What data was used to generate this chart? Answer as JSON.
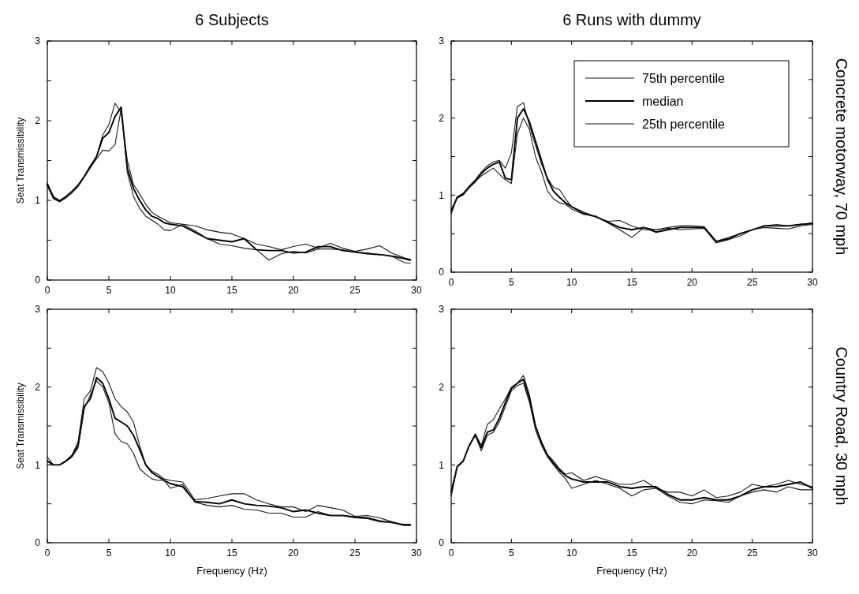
{
  "chart_data": [
    {
      "type": "line",
      "title": "6 Subjects",
      "ylabel": "Seat Transmissibility",
      "xlim": [
        0,
        30
      ],
      "ylim": [
        0,
        3
      ],
      "xticks": [
        0,
        5,
        10,
        15,
        20,
        25,
        30
      ],
      "yticks": [
        0,
        {
          "value": 0.5,
          "label": null
        },
        1,
        {
          "value": 1.5,
          "label": null
        },
        2,
        {
          "value": 2.5,
          "label": null
        },
        3
      ],
      "grid": false,
      "legend": false,
      "marker": "none",
      "line_style": "solid",
      "x": [
        0,
        0.5,
        1,
        1.5,
        2,
        2.5,
        3,
        3.5,
        4,
        4.5,
        5,
        5.5,
        6,
        6.5,
        7,
        7.5,
        8,
        8.5,
        9,
        9.5,
        10,
        11,
        12,
        13,
        14,
        15,
        16,
        17,
        18,
        19,
        20,
        21,
        22,
        23,
        24,
        25,
        26,
        27,
        28,
        29,
        29.5
      ],
      "series": [
        {
          "color": "#1a1a1a",
          "values": [
            1.22,
            1.05,
            1.0,
            1.05,
            1.12,
            1.2,
            1.3,
            1.42,
            1.55,
            1.82,
            1.95,
            2.22,
            2.1,
            1.5,
            1.2,
            1.08,
            0.95,
            0.85,
            0.8,
            0.76,
            0.72,
            0.7,
            0.68,
            0.63,
            0.6,
            0.58,
            0.52,
            0.45,
            0.42,
            0.38,
            0.42,
            0.45,
            0.4,
            0.46,
            0.4,
            0.36,
            0.39,
            0.43,
            0.34,
            0.28,
            0.26
          ]
        },
        {
          "color": "#000000",
          "values": [
            1.2,
            1.03,
            0.99,
            1.04,
            1.1,
            1.18,
            1.3,
            1.43,
            1.55,
            1.78,
            1.85,
            2.05,
            2.17,
            1.4,
            1.15,
            1.0,
            0.88,
            0.8,
            0.77,
            0.72,
            0.7,
            0.68,
            0.6,
            0.52,
            0.5,
            0.48,
            0.52,
            0.38,
            0.37,
            0.37,
            0.34,
            0.35,
            0.42,
            0.42,
            0.37,
            0.35,
            0.33,
            0.32,
            0.3,
            0.27,
            0.25
          ]
        },
        {
          "color": "#1a1a1a",
          "values": [
            1.18,
            1.02,
            0.98,
            1.03,
            1.1,
            1.18,
            1.29,
            1.41,
            1.52,
            1.63,
            1.62,
            1.7,
            2.15,
            1.35,
            1.05,
            0.9,
            0.8,
            0.75,
            0.7,
            0.63,
            0.62,
            0.7,
            0.62,
            0.52,
            0.45,
            0.43,
            0.4,
            0.38,
            0.25,
            0.33,
            0.36,
            0.34,
            0.39,
            0.39,
            0.38,
            0.35,
            0.34,
            0.32,
            0.3,
            0.22,
            0.21
          ]
        }
      ]
    },
    {
      "type": "line",
      "title": "6 Runs with dummy",
      "annotations": [
        "Concrete motorway, 70 mph"
      ],
      "xlim": [
        0,
        30
      ],
      "ylim": [
        0,
        3
      ],
      "xticks": [
        0,
        5,
        10,
        15,
        20,
        25,
        30
      ],
      "yticks": [
        0,
        {
          "value": 0.5,
          "label": null
        },
        1,
        {
          "value": 1.5,
          "label": null
        },
        2,
        {
          "value": 2.5,
          "label": null
        },
        3
      ],
      "grid": false,
      "legend": "top right",
      "marker": "none",
      "line_style": "solid",
      "x": [
        0,
        0.5,
        1,
        1.5,
        2,
        2.5,
        3,
        3.5,
        4,
        4.5,
        5,
        5.5,
        6,
        6.5,
        7,
        7.5,
        8,
        8.5,
        9,
        9.5,
        10,
        11,
        12,
        13,
        14,
        15,
        16,
        17,
        18,
        19,
        20,
        21,
        22,
        23,
        24,
        25,
        26,
        27,
        28,
        29,
        30
      ],
      "series": [
        {
          "name": "75th percentile",
          "color": "#1a1a1a",
          "values": [
            0.75,
            0.98,
            1.02,
            1.12,
            1.2,
            1.3,
            1.38,
            1.43,
            1.45,
            1.35,
            1.55,
            2.15,
            2.2,
            1.9,
            1.65,
            1.4,
            1.22,
            1.1,
            1.07,
            0.95,
            0.85,
            0.78,
            0.72,
            0.66,
            0.67,
            0.6,
            0.55,
            0.55,
            0.58,
            0.6,
            0.6,
            0.59,
            0.4,
            0.45,
            0.5,
            0.55,
            0.6,
            0.62,
            0.6,
            0.62,
            0.64
          ]
        },
        {
          "name": "median",
          "color": "#000000",
          "values": [
            0.8,
            0.97,
            1.02,
            1.1,
            1.18,
            1.28,
            1.35,
            1.4,
            1.43,
            1.22,
            1.2,
            2.0,
            2.12,
            1.95,
            1.7,
            1.45,
            1.2,
            1.05,
            0.97,
            0.9,
            0.85,
            0.76,
            0.72,
            0.65,
            0.58,
            0.55,
            0.58,
            0.52,
            0.55,
            0.58,
            0.58,
            0.58,
            0.4,
            0.43,
            0.5,
            0.55,
            0.6,
            0.6,
            0.6,
            0.62,
            0.63
          ]
        },
        {
          "name": "25th percentile",
          "color": "#1a1a1a",
          "values": [
            0.78,
            0.96,
            1.0,
            1.1,
            1.17,
            1.25,
            1.3,
            1.35,
            1.27,
            1.2,
            1.15,
            1.8,
            2.0,
            1.85,
            1.5,
            1.3,
            1.05,
            0.95,
            0.9,
            0.88,
            0.82,
            0.75,
            0.73,
            0.64,
            0.55,
            0.45,
            0.58,
            0.55,
            0.57,
            0.55,
            0.56,
            0.57,
            0.38,
            0.42,
            0.47,
            0.55,
            0.58,
            0.57,
            0.56,
            0.6,
            0.62
          ]
        }
      ]
    },
    {
      "type": "line",
      "ylabel": "Seat Transmissibility",
      "xlabel": "Frequency (Hz)",
      "xlim": [
        0,
        30
      ],
      "ylim": [
        0,
        3
      ],
      "xticks": [
        0,
        5,
        10,
        15,
        20,
        25,
        30
      ],
      "yticks": [
        0,
        {
          "value": 0.5,
          "label": null
        },
        1,
        {
          "value": 1.5,
          "label": null
        },
        2,
        {
          "value": 2.5,
          "label": null
        },
        3
      ],
      "grid": false,
      "legend": false,
      "marker": "none",
      "line_style": "solid",
      "x": [
        0,
        0.5,
        1,
        1.5,
        2,
        2.5,
        3,
        3.5,
        4,
        4.5,
        5,
        5.5,
        6,
        6.5,
        7,
        7.5,
        8,
        8.5,
        9,
        9.5,
        10,
        11,
        12,
        13,
        14,
        15,
        16,
        17,
        18,
        19,
        20,
        21,
        22,
        23,
        24,
        25,
        26,
        27,
        28,
        29,
        29.5
      ],
      "series": [
        {
          "color": "#1a1a1a",
          "values": [
            1.1,
            1.0,
            1.0,
            1.05,
            1.12,
            1.3,
            1.85,
            1.95,
            2.25,
            2.2,
            2.05,
            1.85,
            1.75,
            1.68,
            1.55,
            1.25,
            1.0,
            0.92,
            0.88,
            0.82,
            0.8,
            0.78,
            0.55,
            0.57,
            0.6,
            0.63,
            0.63,
            0.55,
            0.5,
            0.46,
            0.46,
            0.4,
            0.48,
            0.45,
            0.42,
            0.34,
            0.35,
            0.32,
            0.27,
            0.23,
            0.23
          ]
        },
        {
          "color": "#000000",
          "values": [
            1.05,
            1.0,
            1.0,
            1.05,
            1.12,
            1.25,
            1.75,
            1.85,
            2.12,
            2.05,
            1.85,
            1.6,
            1.55,
            1.5,
            1.38,
            1.2,
            1.0,
            0.9,
            0.85,
            0.8,
            0.76,
            0.72,
            0.53,
            0.52,
            0.5,
            0.55,
            0.5,
            0.48,
            0.47,
            0.45,
            0.4,
            0.42,
            0.38,
            0.35,
            0.35,
            0.33,
            0.32,
            0.28,
            0.26,
            0.23,
            0.23
          ]
        },
        {
          "color": "#1a1a1a",
          "values": [
            1.0,
            1.0,
            1.0,
            1.04,
            1.1,
            1.22,
            1.72,
            1.9,
            2.08,
            2.0,
            1.8,
            1.4,
            1.3,
            1.27,
            1.15,
            0.95,
            0.88,
            0.82,
            0.8,
            0.8,
            0.7,
            0.75,
            0.52,
            0.48,
            0.46,
            0.48,
            0.43,
            0.42,
            0.38,
            0.38,
            0.33,
            0.33,
            0.4,
            0.35,
            0.35,
            0.32,
            0.31,
            0.27,
            0.26,
            0.22,
            0.22
          ]
        }
      ]
    },
    {
      "type": "line",
      "xlabel": "Frequency (Hz)",
      "annotations": [
        "Country Road, 30 mph"
      ],
      "xlim": [
        0,
        30
      ],
      "ylim": [
        0,
        3
      ],
      "xticks": [
        0,
        5,
        10,
        15,
        20,
        25,
        30
      ],
      "yticks": [
        0,
        {
          "value": 0.5,
          "label": null
        },
        1,
        {
          "value": 1.5,
          "label": null
        },
        2,
        {
          "value": 2.5,
          "label": null
        },
        3
      ],
      "grid": false,
      "legend": false,
      "marker": "none",
      "line_style": "solid",
      "x": [
        0,
        0.5,
        1,
        1.5,
        2,
        2.5,
        3,
        3.5,
        4,
        4.5,
        5,
        5.5,
        6,
        6.5,
        7,
        7.5,
        8,
        8.5,
        9,
        9.5,
        10,
        11,
        12,
        13,
        14,
        15,
        16,
        17,
        18,
        19,
        20,
        21,
        22,
        23,
        24,
        25,
        26,
        27,
        28,
        29,
        30
      ],
      "series": [
        {
          "color": "#1a1a1a",
          "values": [
            0.6,
            0.98,
            1.05,
            1.25,
            1.4,
            1.25,
            1.52,
            1.58,
            1.72,
            1.85,
            2.0,
            2.05,
            2.15,
            1.9,
            1.5,
            1.3,
            1.13,
            1.05,
            0.95,
            0.88,
            0.9,
            0.8,
            0.85,
            0.8,
            0.75,
            0.75,
            0.8,
            0.7,
            0.65,
            0.65,
            0.6,
            0.68,
            0.58,
            0.6,
            0.65,
            0.75,
            0.72,
            0.75,
            0.8,
            0.75,
            0.72
          ]
        },
        {
          "color": "#000000",
          "values": [
            0.65,
            0.98,
            1.05,
            1.25,
            1.38,
            1.22,
            1.42,
            1.45,
            1.6,
            1.8,
            1.98,
            2.05,
            2.1,
            1.85,
            1.5,
            1.28,
            1.12,
            1.02,
            0.93,
            0.86,
            0.82,
            0.78,
            0.78,
            0.78,
            0.72,
            0.7,
            0.72,
            0.72,
            0.62,
            0.55,
            0.55,
            0.58,
            0.55,
            0.55,
            0.6,
            0.68,
            0.72,
            0.72,
            0.75,
            0.78,
            0.7
          ]
        },
        {
          "color": "#1a1a1a",
          "values": [
            0.6,
            0.97,
            1.04,
            1.24,
            1.38,
            1.18,
            1.38,
            1.42,
            1.55,
            1.75,
            1.95,
            2.02,
            2.05,
            1.8,
            1.45,
            1.25,
            1.1,
            1.0,
            0.9,
            0.82,
            0.7,
            0.75,
            0.8,
            0.75,
            0.7,
            0.6,
            0.68,
            0.7,
            0.6,
            0.52,
            0.5,
            0.55,
            0.54,
            0.52,
            0.6,
            0.65,
            0.68,
            0.65,
            0.72,
            0.68,
            0.68
          ]
        }
      ]
    }
  ]
}
